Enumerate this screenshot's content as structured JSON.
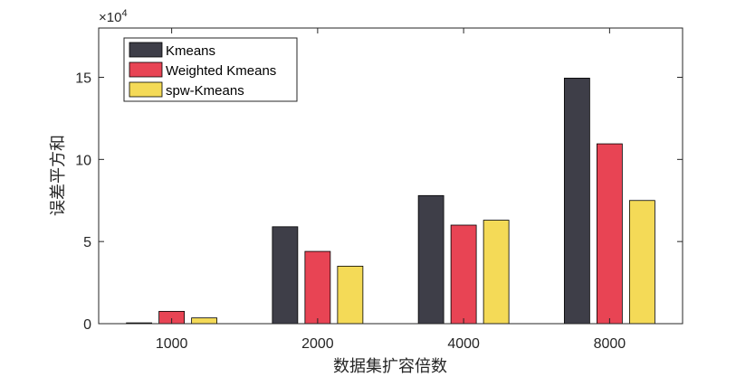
{
  "chart_data": {
    "type": "bar",
    "title": "",
    "xlabel": "数据集扩容倍数",
    "ylabel": "误差平方和",
    "exponent_label": "×10",
    "exponent_power": "4",
    "categories": [
      "1000",
      "2000",
      "4000",
      "8000"
    ],
    "y_ticks": [
      "0",
      "5",
      "10",
      "15"
    ],
    "ylim": [
      0,
      18
    ],
    "y_scale_multiplier": 10000,
    "series": [
      {
        "name": "Kmeans",
        "color": "#3e3e48",
        "values": [
          0.05,
          5.9,
          7.8,
          14.95
        ]
      },
      {
        "name": "Weighted Kmeans",
        "color": "#e84454",
        "values": [
          0.75,
          4.4,
          6.0,
          10.95
        ]
      },
      {
        "name": "spw-Kmeans",
        "color": "#f4da57",
        "values": [
          0.35,
          3.5,
          6.3,
          7.5
        ]
      }
    ],
    "legend_position": "top-left",
    "grid": false
  }
}
